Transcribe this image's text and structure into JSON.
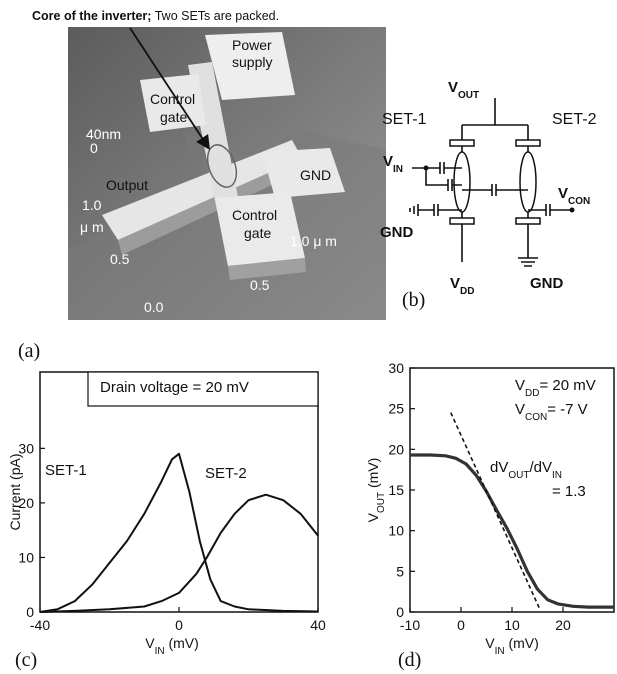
{
  "panel_a": {
    "caption": [
      "Core of the inverter;",
      " Two SETs are packed."
    ],
    "labels": {
      "scale_height": "40nm",
      "zero": "0",
      "control_gate_top": [
        "Control",
        "gate"
      ],
      "power_supply": [
        "Power",
        "supply"
      ],
      "output": "Output",
      "gnd": "GND",
      "control_gate_bottom": [
        "Control",
        "gate"
      ],
      "y_1_0": "1.0",
      "y_unit": "μ m",
      "y_0_5": "0.5",
      "origin": "0.0",
      "x_0_5": "0.5",
      "x_1_0": "1.0 μ m"
    },
    "tag": "(a)"
  },
  "panel_b": {
    "v_out": [
      "V",
      "OUT"
    ],
    "set_1": "SET-1",
    "set_2": "SET-2",
    "v_in": [
      "V",
      "IN"
    ],
    "v_con": [
      "V",
      "CON"
    ],
    "gnd_left": "GND",
    "v_dd": [
      "V",
      "DD"
    ],
    "gnd_right": "GND",
    "tag": "(b)"
  },
  "chart_data": [
    {
      "type": "line",
      "tag": "(c)",
      "y_label": "Current (pA)",
      "x_label": [
        "V",
        "IN",
        " (mV)"
      ],
      "annotations": [
        "Drain voltage = 20 mV"
      ],
      "xlim": [
        -40,
        40
      ],
      "xticks": [
        -40,
        0,
        40
      ],
      "ylim": [
        0,
        44
      ],
      "yticks": [
        0,
        10,
        20,
        30
      ],
      "series": [
        {
          "name": "SET-1",
          "color": "#111111",
          "x": [
            -40,
            -35,
            -30,
            -25,
            -20,
            -15,
            -10,
            -5,
            -2,
            0,
            3,
            6,
            9,
            12,
            16,
            20,
            30,
            40
          ],
          "values": [
            0,
            0.5,
            2,
            5,
            9,
            13,
            18,
            24,
            28,
            29,
            22,
            13,
            6,
            2,
            1,
            0.5,
            0.2,
            0.1
          ]
        },
        {
          "name": "SET-2",
          "color": "#111111",
          "x": [
            -40,
            -30,
            -20,
            -10,
            -5,
            0,
            5,
            8,
            12,
            16,
            20,
            25,
            30,
            35,
            40
          ],
          "values": [
            0,
            0.2,
            0.5,
            1,
            2,
            3.5,
            7,
            10,
            14.5,
            18,
            20.5,
            21.5,
            20.5,
            18,
            14
          ]
        }
      ]
    },
    {
      "type": "line",
      "tag": "(d)",
      "y_label": [
        "V",
        "OUT",
        " (mV)"
      ],
      "x_label": [
        "V",
        "IN",
        " (mV)"
      ],
      "annotations": [
        [
          "V",
          "DD",
          "= 20 mV"
        ],
        [
          "V",
          "CON",
          "= -7 V"
        ],
        [
          "dV",
          "OUT",
          "/dV",
          "IN"
        ],
        "= 1.3"
      ],
      "xlim": [
        -10,
        30
      ],
      "xticks": [
        -10,
        0,
        10,
        20
      ],
      "ylim": [
        0,
        30
      ],
      "yticks": [
        0,
        5,
        10,
        15,
        20,
        25,
        30
      ],
      "series": [
        {
          "color": "#333333",
          "x": [
            -10,
            -6,
            -3,
            -1,
            1,
            3,
            5,
            7,
            9,
            11,
            13,
            15,
            17,
            19,
            22,
            25,
            28,
            30
          ],
          "values": [
            19.3,
            19.3,
            19.2,
            18.9,
            18.2,
            16.8,
            14.8,
            12.5,
            10.3,
            7.8,
            5,
            2.8,
            1.5,
            1,
            0.7,
            0.6,
            0.6,
            0.6
          ]
        }
      ],
      "fit_line": {
        "color": "#111111",
        "x": [
          -2,
          15.5
        ],
        "values": [
          24.5,
          0.3
        ]
      }
    }
  ]
}
